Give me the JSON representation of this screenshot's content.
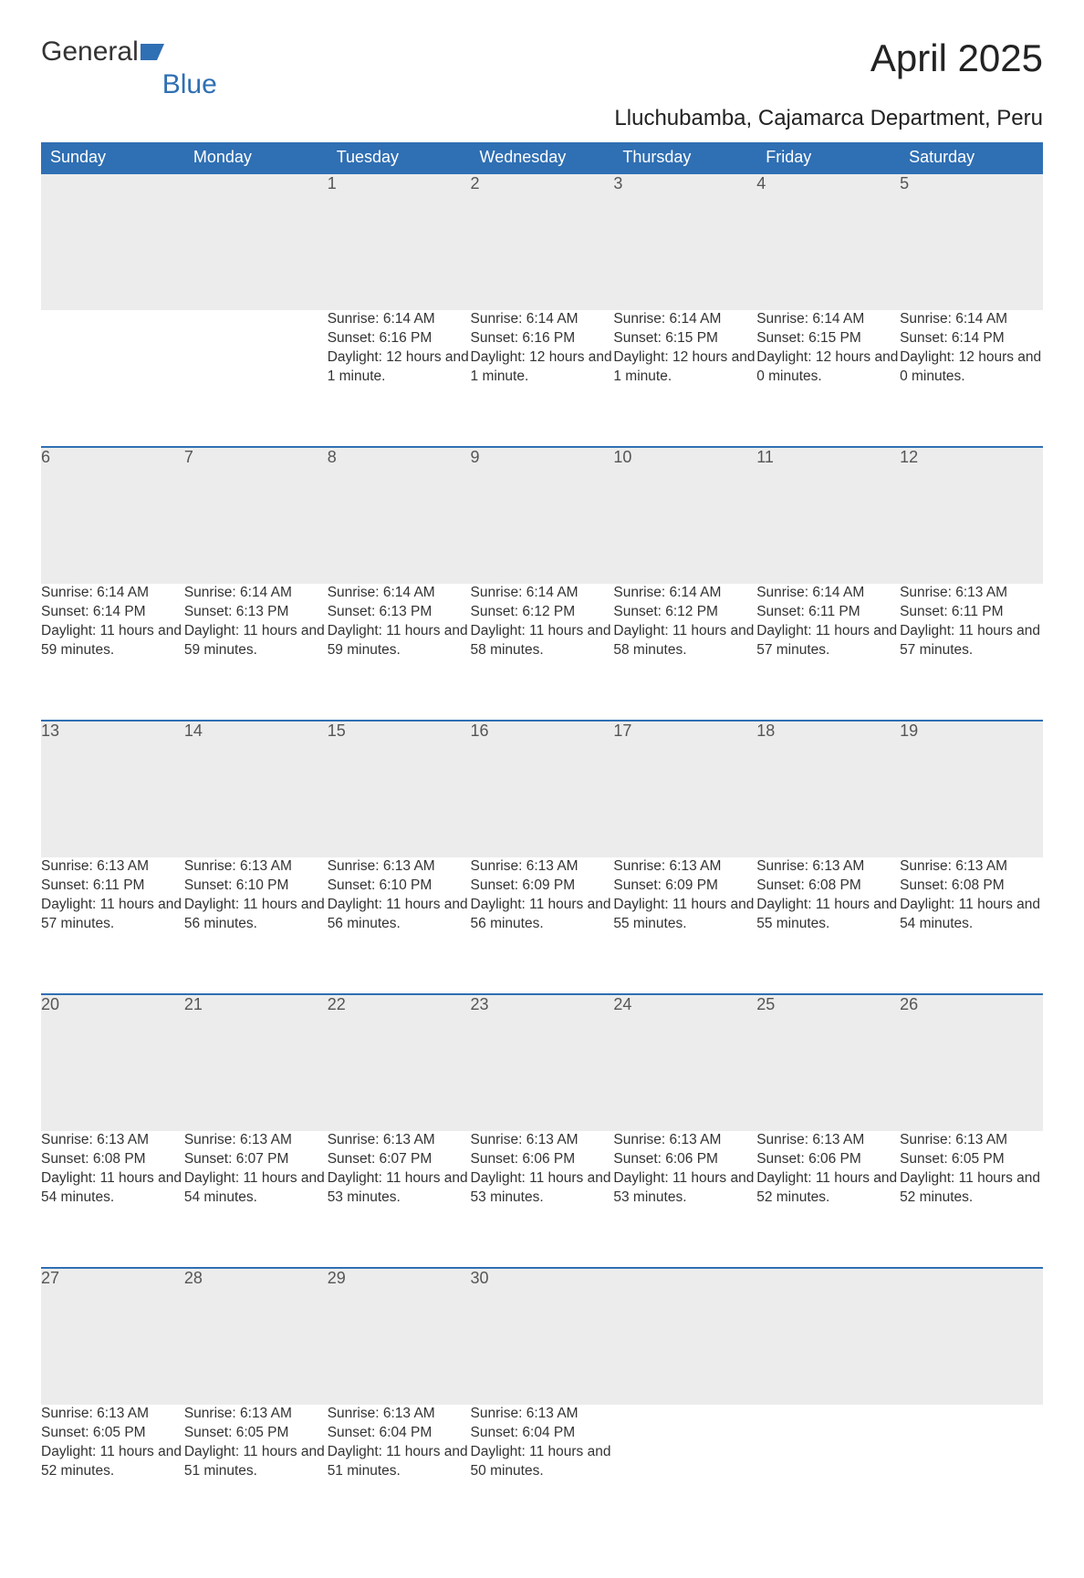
{
  "logo": {
    "text1": "General",
    "text2": "Blue"
  },
  "title": "April 2025",
  "subtitle": "Lluchubamba, Cajamarca Department, Peru",
  "colors": {
    "header_bg": "#2f6fb3",
    "header_text": "#ffffff",
    "daynum_bg": "#ececec",
    "daynum_border": "#2f6fb3",
    "body_bg": "#ffffff",
    "text": "#333333"
  },
  "daysOfWeek": [
    "Sunday",
    "Monday",
    "Tuesday",
    "Wednesday",
    "Thursday",
    "Friday",
    "Saturday"
  ],
  "weeks": [
    [
      null,
      null,
      {
        "n": "1",
        "sr": "Sunrise: 6:14 AM",
        "ss": "Sunset: 6:16 PM",
        "dl": "Daylight: 12 hours and 1 minute."
      },
      {
        "n": "2",
        "sr": "Sunrise: 6:14 AM",
        "ss": "Sunset: 6:16 PM",
        "dl": "Daylight: 12 hours and 1 minute."
      },
      {
        "n": "3",
        "sr": "Sunrise: 6:14 AM",
        "ss": "Sunset: 6:15 PM",
        "dl": "Daylight: 12 hours and 1 minute."
      },
      {
        "n": "4",
        "sr": "Sunrise: 6:14 AM",
        "ss": "Sunset: 6:15 PM",
        "dl": "Daylight: 12 hours and 0 minutes."
      },
      {
        "n": "5",
        "sr": "Sunrise: 6:14 AM",
        "ss": "Sunset: 6:14 PM",
        "dl": "Daylight: 12 hours and 0 minutes."
      }
    ],
    [
      {
        "n": "6",
        "sr": "Sunrise: 6:14 AM",
        "ss": "Sunset: 6:14 PM",
        "dl": "Daylight: 11 hours and 59 minutes."
      },
      {
        "n": "7",
        "sr": "Sunrise: 6:14 AM",
        "ss": "Sunset: 6:13 PM",
        "dl": "Daylight: 11 hours and 59 minutes."
      },
      {
        "n": "8",
        "sr": "Sunrise: 6:14 AM",
        "ss": "Sunset: 6:13 PM",
        "dl": "Daylight: 11 hours and 59 minutes."
      },
      {
        "n": "9",
        "sr": "Sunrise: 6:14 AM",
        "ss": "Sunset: 6:12 PM",
        "dl": "Daylight: 11 hours and 58 minutes."
      },
      {
        "n": "10",
        "sr": "Sunrise: 6:14 AM",
        "ss": "Sunset: 6:12 PM",
        "dl": "Daylight: 11 hours and 58 minutes."
      },
      {
        "n": "11",
        "sr": "Sunrise: 6:14 AM",
        "ss": "Sunset: 6:11 PM",
        "dl": "Daylight: 11 hours and 57 minutes."
      },
      {
        "n": "12",
        "sr": "Sunrise: 6:13 AM",
        "ss": "Sunset: 6:11 PM",
        "dl": "Daylight: 11 hours and 57 minutes."
      }
    ],
    [
      {
        "n": "13",
        "sr": "Sunrise: 6:13 AM",
        "ss": "Sunset: 6:11 PM",
        "dl": "Daylight: 11 hours and 57 minutes."
      },
      {
        "n": "14",
        "sr": "Sunrise: 6:13 AM",
        "ss": "Sunset: 6:10 PM",
        "dl": "Daylight: 11 hours and 56 minutes."
      },
      {
        "n": "15",
        "sr": "Sunrise: 6:13 AM",
        "ss": "Sunset: 6:10 PM",
        "dl": "Daylight: 11 hours and 56 minutes."
      },
      {
        "n": "16",
        "sr": "Sunrise: 6:13 AM",
        "ss": "Sunset: 6:09 PM",
        "dl": "Daylight: 11 hours and 56 minutes."
      },
      {
        "n": "17",
        "sr": "Sunrise: 6:13 AM",
        "ss": "Sunset: 6:09 PM",
        "dl": "Daylight: 11 hours and 55 minutes."
      },
      {
        "n": "18",
        "sr": "Sunrise: 6:13 AM",
        "ss": "Sunset: 6:08 PM",
        "dl": "Daylight: 11 hours and 55 minutes."
      },
      {
        "n": "19",
        "sr": "Sunrise: 6:13 AM",
        "ss": "Sunset: 6:08 PM",
        "dl": "Daylight: 11 hours and 54 minutes."
      }
    ],
    [
      {
        "n": "20",
        "sr": "Sunrise: 6:13 AM",
        "ss": "Sunset: 6:08 PM",
        "dl": "Daylight: 11 hours and 54 minutes."
      },
      {
        "n": "21",
        "sr": "Sunrise: 6:13 AM",
        "ss": "Sunset: 6:07 PM",
        "dl": "Daylight: 11 hours and 54 minutes."
      },
      {
        "n": "22",
        "sr": "Sunrise: 6:13 AM",
        "ss": "Sunset: 6:07 PM",
        "dl": "Daylight: 11 hours and 53 minutes."
      },
      {
        "n": "23",
        "sr": "Sunrise: 6:13 AM",
        "ss": "Sunset: 6:06 PM",
        "dl": "Daylight: 11 hours and 53 minutes."
      },
      {
        "n": "24",
        "sr": "Sunrise: 6:13 AM",
        "ss": "Sunset: 6:06 PM",
        "dl": "Daylight: 11 hours and 53 minutes."
      },
      {
        "n": "25",
        "sr": "Sunrise: 6:13 AM",
        "ss": "Sunset: 6:06 PM",
        "dl": "Daylight: 11 hours and 52 minutes."
      },
      {
        "n": "26",
        "sr": "Sunrise: 6:13 AM",
        "ss": "Sunset: 6:05 PM",
        "dl": "Daylight: 11 hours and 52 minutes."
      }
    ],
    [
      {
        "n": "27",
        "sr": "Sunrise: 6:13 AM",
        "ss": "Sunset: 6:05 PM",
        "dl": "Daylight: 11 hours and 52 minutes."
      },
      {
        "n": "28",
        "sr": "Sunrise: 6:13 AM",
        "ss": "Sunset: 6:05 PM",
        "dl": "Daylight: 11 hours and 51 minutes."
      },
      {
        "n": "29",
        "sr": "Sunrise: 6:13 AM",
        "ss": "Sunset: 6:04 PM",
        "dl": "Daylight: 11 hours and 51 minutes."
      },
      {
        "n": "30",
        "sr": "Sunrise: 6:13 AM",
        "ss": "Sunset: 6:04 PM",
        "dl": "Daylight: 11 hours and 50 minutes."
      },
      null,
      null,
      null
    ]
  ]
}
